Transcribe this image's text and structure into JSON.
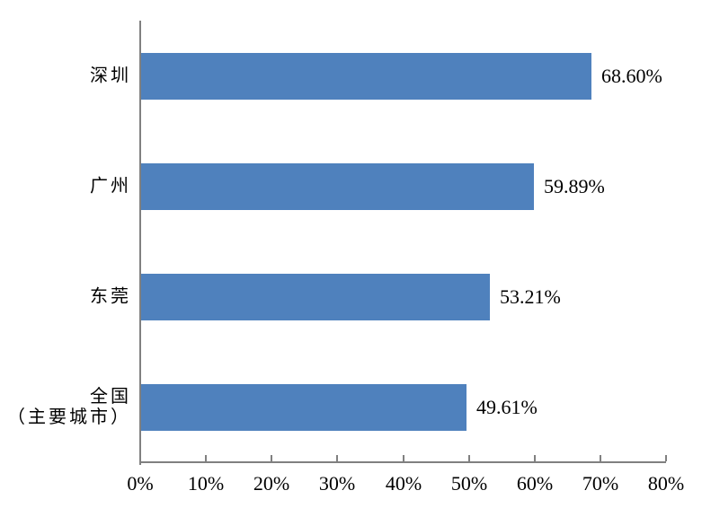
{
  "chart_data": {
    "type": "bar",
    "orientation": "horizontal",
    "title": "",
    "xlabel": "",
    "ylabel": "",
    "categories": [
      "深圳",
      "广州",
      "东莞",
      "全国\n（主要城市）"
    ],
    "values": [
      68.6,
      59.89,
      53.21,
      49.61
    ],
    "value_labels": [
      "68.60%",
      "59.89%",
      "53.21%",
      "49.61%"
    ],
    "x_axis": {
      "min": 0,
      "max": 80,
      "step": 10,
      "tick_labels": [
        "0%",
        "10%",
        "20%",
        "30%",
        "40%",
        "50%",
        "60%",
        "70%",
        "80%"
      ]
    },
    "grid": false,
    "legend": false,
    "colors": {
      "bar": "#4F81BD",
      "axis": "#808080",
      "text": "#000000",
      "background": "#FFFFFF"
    }
  }
}
